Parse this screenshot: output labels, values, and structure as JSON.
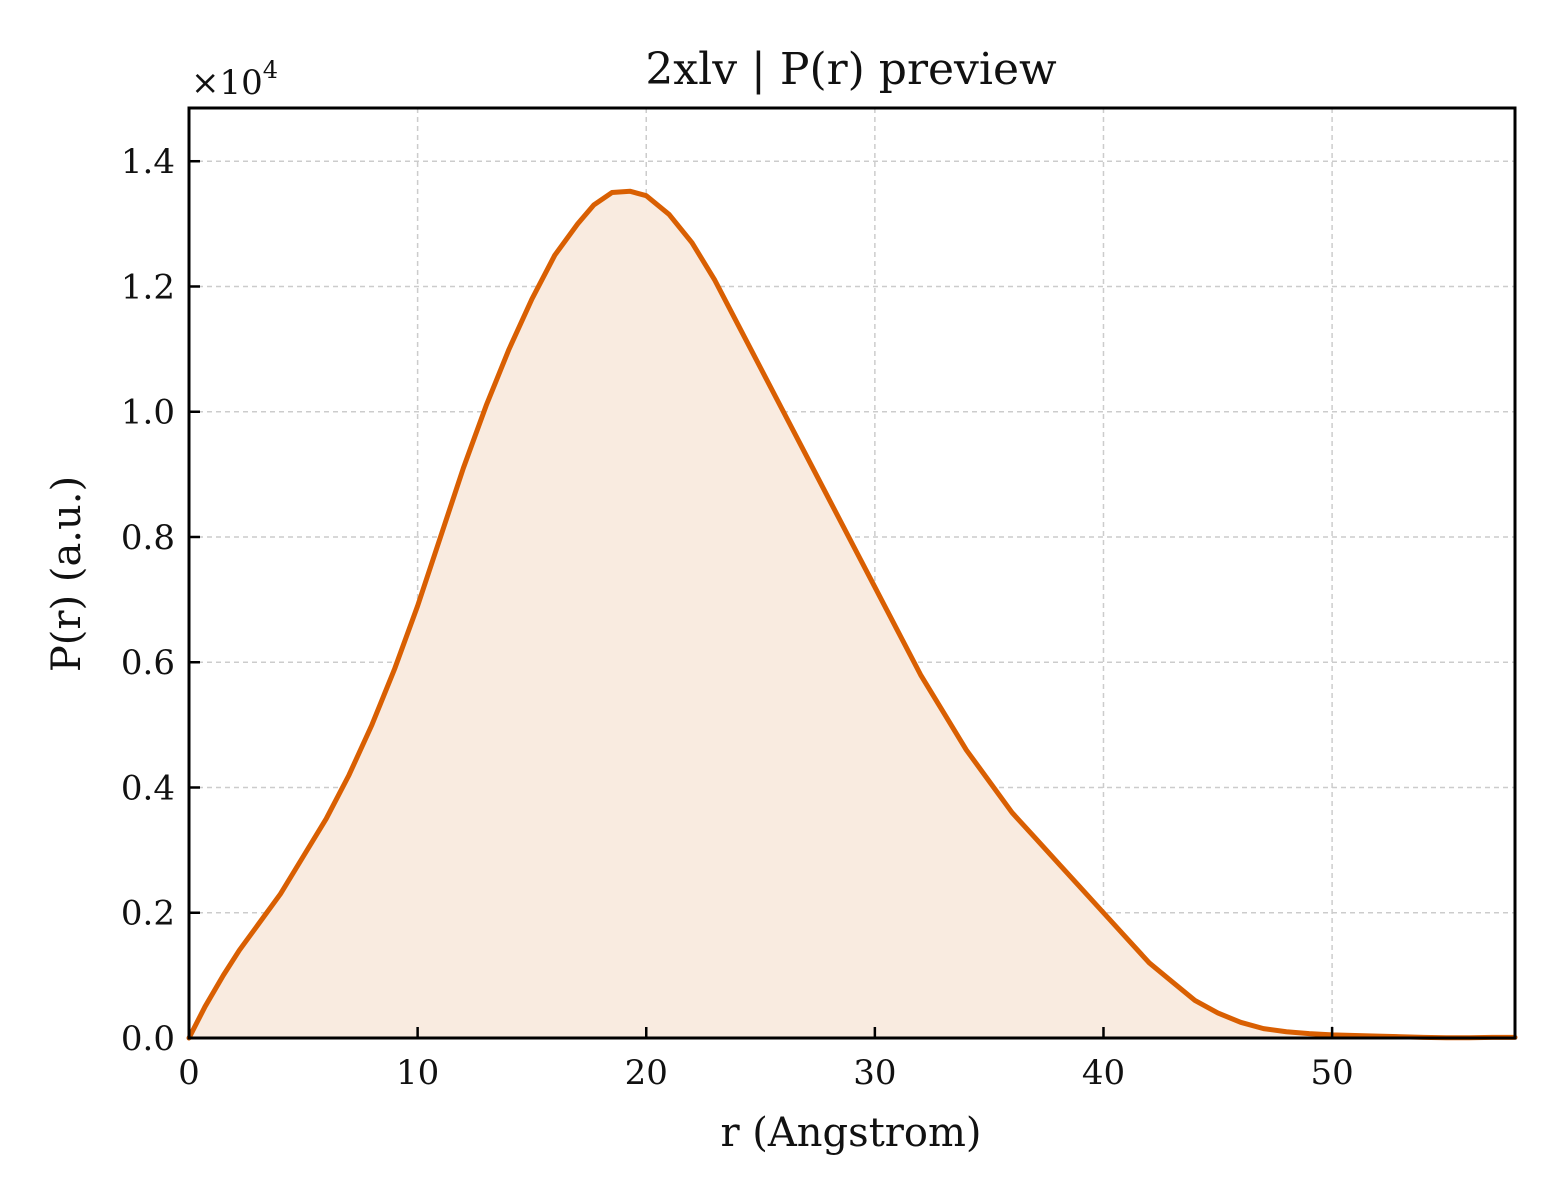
{
  "chart_data": {
    "type": "area",
    "title": "2xlv | P(r) preview",
    "xlabel": "r (Angstrom)",
    "ylabel": "P(r) (a.u.)",
    "y_multiplier_base": "×10",
    "y_multiplier_exp": "4",
    "xlim": [
      0,
      58
    ],
    "ylim": [
      0,
      1.485
    ],
    "x_ticks": [
      0,
      10,
      20,
      30,
      40,
      50
    ],
    "x_tick_labels": [
      "0",
      "10",
      "20",
      "30",
      "40",
      "50"
    ],
    "y_ticks": [
      0,
      0.2,
      0.4,
      0.6,
      0.8,
      1.0,
      1.2,
      1.4
    ],
    "y_tick_labels": [
      "0.0",
      "0.2",
      "0.4",
      "0.6",
      "0.8",
      "1.0",
      "1.2",
      "1.4"
    ],
    "grid": true,
    "line_color": "#d95f02",
    "fill_color": "#f9ebe0",
    "x": [
      0,
      0.7,
      1.5,
      2.2,
      3,
      4,
      5,
      6,
      7,
      8,
      9,
      10,
      11,
      12,
      12.5,
      13,
      14,
      15,
      16,
      17,
      17.7,
      18.5,
      19.3,
      20,
      21,
      22,
      23,
      24,
      25,
      26,
      27,
      28,
      29,
      30,
      31,
      32,
      33,
      34,
      35,
      36,
      37,
      38,
      39,
      40,
      41,
      42,
      43,
      44,
      45,
      46,
      47,
      48,
      49,
      50,
      51,
      52,
      53,
      54,
      55,
      56,
      57,
      58
    ],
    "y": [
      0,
      0.05,
      0.1,
      0.14,
      0.18,
      0.23,
      0.29,
      0.35,
      0.42,
      0.5,
      0.59,
      0.69,
      0.8,
      0.91,
      0.96,
      1.01,
      1.1,
      1.18,
      1.25,
      1.3,
      1.33,
      1.35,
      1.352,
      1.345,
      1.315,
      1.27,
      1.21,
      1.14,
      1.07,
      1.0,
      0.93,
      0.86,
      0.79,
      0.72,
      0.65,
      0.58,
      0.52,
      0.46,
      0.41,
      0.36,
      0.32,
      0.28,
      0.24,
      0.2,
      0.16,
      0.12,
      0.09,
      0.06,
      0.04,
      0.025,
      0.015,
      0.01,
      0.007,
      0.005,
      0.004,
      0.003,
      0.002,
      0.001,
      0.0005,
      0.0005,
      0.001,
      0.001
    ]
  }
}
